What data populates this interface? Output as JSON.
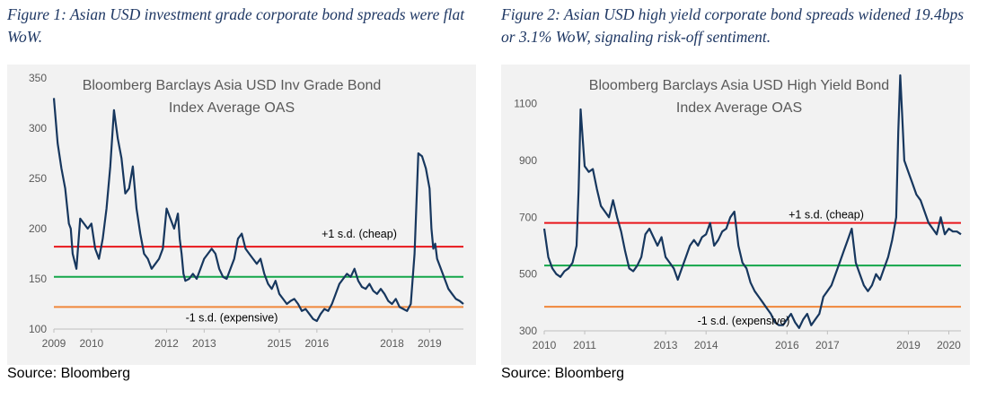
{
  "figures": [
    {
      "caption": "Figure 1: Asian USD investment grade corporate bond spreads were flat WoW.",
      "source": "Source: Bloomberg"
    },
    {
      "caption": "Figure 2: Asian USD high yield corporate bond spreads widened 19.4bps or 3.1% WoW, signaling risk-off sentiment.",
      "source": "Source: Bloomberg"
    }
  ],
  "chart_data": [
    {
      "type": "line",
      "title": [
        "Bloomberg Barclays Asia USD Inv Grade Bond",
        "Index Average OAS"
      ],
      "xlabel": "",
      "ylabel": "",
      "xlim": [
        2009.0,
        2019.9
      ],
      "ylim": [
        100,
        350
      ],
      "y_ticks": [
        100,
        150,
        200,
        250,
        300,
        350
      ],
      "x_ticks": [
        2009,
        2010,
        2012,
        2013,
        2015,
        2016,
        2018,
        2019
      ],
      "grid": false,
      "colors": {
        "series": "#17375e",
        "upper": "#e8161b",
        "mean": "#14a64a",
        "lower": "#f0873a"
      },
      "reference_lines": [
        {
          "value": 182,
          "label": "+1 s.d. (cheap)",
          "color": "#e8161b"
        },
        {
          "value": 152,
          "label": "",
          "color": "#14a64a"
        },
        {
          "value": 122,
          "label": "-1 s.d. (expensive)",
          "color": "#f0873a"
        }
      ],
      "x": [
        2009.0,
        2009.1,
        2009.2,
        2009.3,
        2009.4,
        2009.45,
        2009.5,
        2009.6,
        2009.7,
        2009.8,
        2009.9,
        2010.0,
        2010.1,
        2010.2,
        2010.3,
        2010.4,
        2010.5,
        2010.6,
        2010.7,
        2010.75,
        2010.8,
        2010.9,
        2011.0,
        2011.1,
        2011.2,
        2011.3,
        2011.4,
        2011.5,
        2011.6,
        2011.7,
        2011.8,
        2011.9,
        2012.0,
        2012.1,
        2012.2,
        2012.3,
        2012.35,
        2012.4,
        2012.45,
        2012.5,
        2012.6,
        2012.7,
        2012.8,
        2012.9,
        2013.0,
        2013.1,
        2013.2,
        2013.3,
        2013.4,
        2013.5,
        2013.6,
        2013.7,
        2013.8,
        2013.9,
        2014.0,
        2014.1,
        2014.2,
        2014.3,
        2014.4,
        2014.5,
        2014.6,
        2014.7,
        2014.8,
        2014.9,
        2015.0,
        2015.1,
        2015.2,
        2015.3,
        2015.4,
        2015.5,
        2015.6,
        2015.7,
        2015.8,
        2015.9,
        2016.0,
        2016.1,
        2016.2,
        2016.3,
        2016.4,
        2016.5,
        2016.6,
        2016.7,
        2016.8,
        2016.9,
        2017.0,
        2017.1,
        2017.2,
        2017.3,
        2017.4,
        2017.5,
        2017.6,
        2017.7,
        2017.8,
        2017.9,
        2018.0,
        2018.1,
        2018.2,
        2018.3,
        2018.4,
        2018.5,
        2018.6,
        2018.7,
        2018.8,
        2018.9,
        2019.0,
        2019.05,
        2019.1,
        2019.15,
        2019.2,
        2019.3,
        2019.4,
        2019.5,
        2019.6,
        2019.7,
        2019.8,
        2019.9
      ],
      "values": [
        330,
        285,
        260,
        240,
        205,
        200,
        175,
        160,
        210,
        205,
        200,
        205,
        180,
        170,
        190,
        220,
        262,
        318,
        290,
        280,
        270,
        235,
        240,
        262,
        220,
        195,
        175,
        170,
        160,
        165,
        170,
        180,
        220,
        210,
        200,
        215,
        190,
        175,
        155,
        148,
        150,
        155,
        150,
        160,
        170,
        175,
        180,
        175,
        160,
        152,
        150,
        160,
        170,
        190,
        195,
        180,
        175,
        170,
        165,
        170,
        155,
        145,
        140,
        148,
        135,
        130,
        125,
        128,
        130,
        125,
        118,
        120,
        115,
        110,
        108,
        115,
        120,
        118,
        125,
        135,
        145,
        150,
        155,
        152,
        160,
        148,
        142,
        140,
        145,
        138,
        135,
        140,
        135,
        128,
        125,
        130,
        122,
        120,
        118,
        125,
        175,
        275,
        272,
        260,
        240,
        200,
        180,
        185,
        170,
        160,
        150,
        140,
        135,
        130,
        128,
        125
      ]
    },
    {
      "type": "line",
      "title": [
        "Bloomberg Barclays Asia USD High Yield Bond",
        "Index Average OAS"
      ],
      "xlabel": "",
      "ylabel": "",
      "xlim": [
        2010.0,
        2020.3
      ],
      "ylim": [
        300,
        1200
      ],
      "y_ticks": [
        300,
        500,
        700,
        900,
        1100
      ],
      "x_ticks": [
        2010,
        2011,
        2013,
        2014,
        2016,
        2017,
        2019,
        2020
      ],
      "grid": false,
      "colors": {
        "series": "#17375e",
        "upper": "#e8161b",
        "mean": "#14a64a",
        "lower": "#f0873a"
      },
      "reference_lines": [
        {
          "value": 680,
          "label": "+1 s.d. (cheap)",
          "color": "#e8161b"
        },
        {
          "value": 530,
          "label": "",
          "color": "#14a64a"
        },
        {
          "value": 385,
          "label": "-1 s.d. (expensive)",
          "color": "#f0873a"
        }
      ],
      "x": [
        2010.0,
        2010.1,
        2010.2,
        2010.3,
        2010.4,
        2010.5,
        2010.6,
        2010.7,
        2010.8,
        2010.85,
        2010.9,
        2011.0,
        2011.1,
        2011.2,
        2011.3,
        2011.4,
        2011.5,
        2011.6,
        2011.7,
        2011.8,
        2011.9,
        2012.0,
        2012.1,
        2012.2,
        2012.3,
        2012.4,
        2012.5,
        2012.6,
        2012.7,
        2012.8,
        2012.9,
        2013.0,
        2013.1,
        2013.2,
        2013.3,
        2013.4,
        2013.5,
        2013.6,
        2013.7,
        2013.8,
        2013.9,
        2014.0,
        2014.1,
        2014.2,
        2014.3,
        2014.4,
        2014.5,
        2014.6,
        2014.7,
        2014.8,
        2014.9,
        2015.0,
        2015.1,
        2015.2,
        2015.3,
        2015.4,
        2015.5,
        2015.6,
        2015.7,
        2015.8,
        2015.9,
        2016.0,
        2016.1,
        2016.2,
        2016.3,
        2016.4,
        2016.5,
        2016.6,
        2016.7,
        2016.8,
        2016.9,
        2017.0,
        2017.1,
        2017.2,
        2017.3,
        2017.4,
        2017.5,
        2017.6,
        2017.7,
        2017.8,
        2017.9,
        2018.0,
        2018.1,
        2018.2,
        2018.3,
        2018.4,
        2018.5,
        2018.6,
        2018.7,
        2018.75,
        2018.8,
        2018.85,
        2018.9,
        2019.0,
        2019.1,
        2019.2,
        2019.3,
        2019.4,
        2019.5,
        2019.6,
        2019.7,
        2019.8,
        2019.9,
        2020.0,
        2020.1,
        2020.2,
        2020.3
      ],
      "values": [
        660,
        560,
        520,
        500,
        490,
        510,
        520,
        540,
        600,
        800,
        1080,
        880,
        860,
        870,
        800,
        740,
        720,
        700,
        760,
        700,
        650,
        580,
        520,
        510,
        530,
        560,
        640,
        660,
        630,
        600,
        630,
        560,
        540,
        520,
        480,
        520,
        560,
        600,
        620,
        600,
        630,
        640,
        680,
        600,
        620,
        650,
        660,
        700,
        720,
        600,
        540,
        520,
        470,
        440,
        420,
        400,
        380,
        360,
        330,
        320,
        320,
        340,
        360,
        330,
        310,
        340,
        360,
        320,
        340,
        360,
        420,
        440,
        460,
        500,
        540,
        580,
        620,
        660,
        540,
        500,
        460,
        440,
        460,
        500,
        480,
        520,
        560,
        620,
        700,
        1000,
        1200,
        1050,
        900,
        860,
        820,
        780,
        760,
        720,
        680,
        660,
        640,
        700,
        640,
        660,
        650,
        650,
        640
      ]
    }
  ]
}
